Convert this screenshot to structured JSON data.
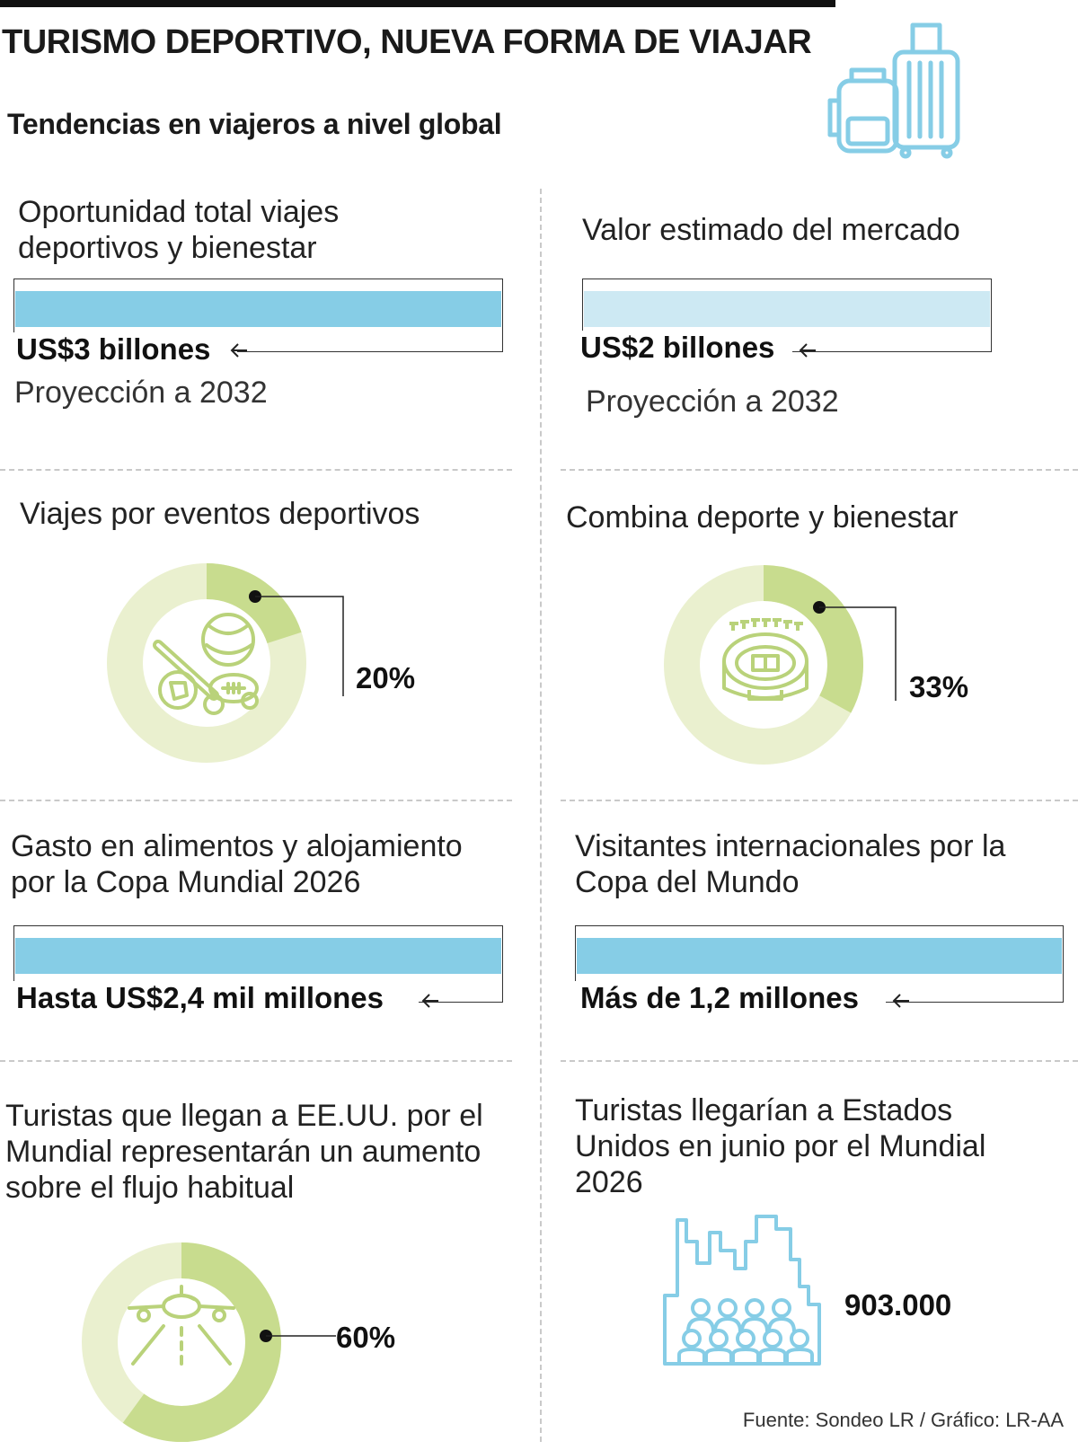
{
  "header": {
    "title": "TURISMO DEPORTIVO, NUEVA FORMA DE VIAJAR",
    "subtitle": "Tendencias en viajeros a nivel global",
    "icon": "luggage-icon"
  },
  "panels": {
    "oportunidad": {
      "label": "Oportunidad total viajes deportivos y bienestar",
      "value": "US$3 billones",
      "note": "Proyección a 2032",
      "bar_color": "#86cde6",
      "bar_fill": 1.0
    },
    "mercado": {
      "label": "Valor estimado del mercado",
      "value": "US$2 billones",
      "note": "Proyección a 2032",
      "bar_color": "#cde9f3",
      "bar_fill": 1.0
    },
    "eventos": {
      "label": "Viajes por eventos deportivos",
      "value": "20%",
      "percent": 20,
      "icon": "sports-balls-icon"
    },
    "bienestar": {
      "label": "Combina deporte y bienestar",
      "value": "33%",
      "percent": 33,
      "icon": "stadium-icon"
    },
    "gasto": {
      "label": "Gasto en alimentos y alojamiento por la Copa Mundial 2026",
      "value": "Hasta US$2,4 mil millones",
      "bar_color": "#86cde6",
      "bar_fill": 1.0
    },
    "visitantes": {
      "label": "Visitantes internacionales por la Copa del Mundo",
      "value": "Más de 1,2 millones",
      "bar_color": "#86cde6",
      "bar_fill": 1.0
    },
    "aumento": {
      "label": "Turistas que llegan a EE.UU. por el Mundial representarán un aumento sobre el flujo habitual",
      "value": "60%",
      "percent": 60,
      "icon": "airplane-icon"
    },
    "junio": {
      "label": "Turistas llegarían a Estados Unidos en junio por el Mundial 2026",
      "value": "903.000",
      "icon": "crowd-city-icon"
    }
  },
  "colors": {
    "donut_light": "#eaf0cf",
    "donut_dark": "#c8dc8e",
    "icon_green": "#b9d27a",
    "icon_blue": "#86cde6"
  },
  "footer": {
    "source": "Fuente: Sondeo LR / Gráfico: LR-AA"
  }
}
